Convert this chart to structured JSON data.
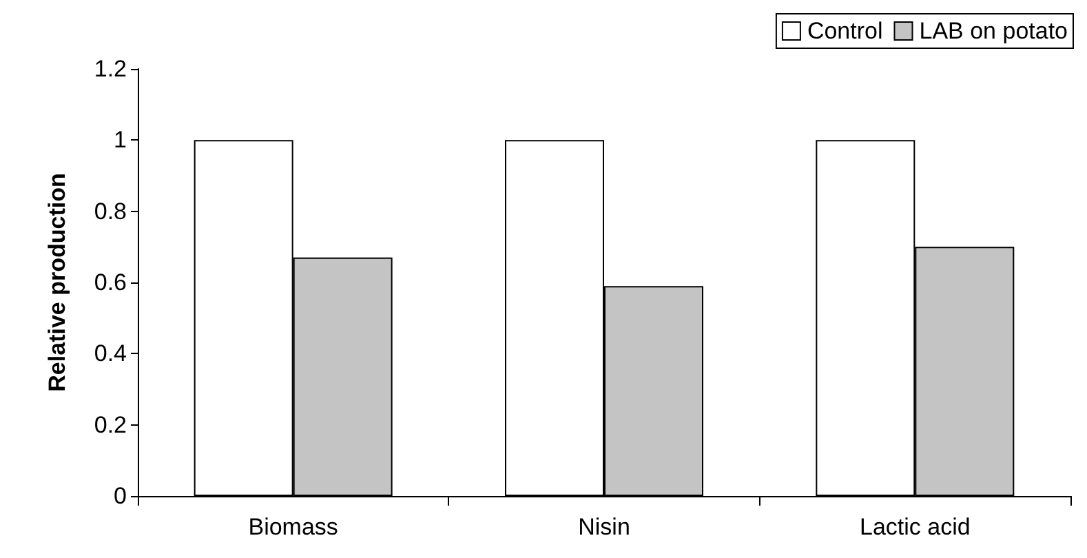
{
  "chart_data": {
    "type": "bar",
    "ylabel": "Relative production",
    "categories": [
      "Biomass",
      "Nisin",
      "Lactic acid"
    ],
    "series": [
      {
        "name": "Control",
        "color": "#ffffff",
        "values": [
          1,
          1,
          1
        ]
      },
      {
        "name": "LAB on potato",
        "color": "#c4c4c4",
        "values": [
          0.67,
          0.59,
          0.7
        ]
      }
    ],
    "ylim": [
      0,
      1.2
    ],
    "yticks": [
      0,
      0.2,
      0.4,
      0.6,
      0.8,
      1,
      1.2
    ],
    "grid": false,
    "legend": "top right"
  }
}
